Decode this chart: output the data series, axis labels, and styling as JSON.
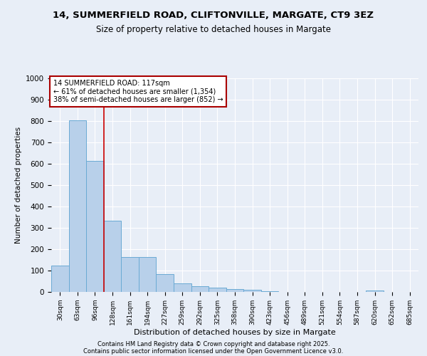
{
  "title1": "14, SUMMERFIELD ROAD, CLIFTONVILLE, MARGATE, CT9 3EZ",
  "title2": "Size of property relative to detached houses in Margate",
  "xlabel": "Distribution of detached houses by size in Margate",
  "ylabel": "Number of detached properties",
  "bins": [
    "30sqm",
    "63sqm",
    "96sqm",
    "128sqm",
    "161sqm",
    "194sqm",
    "227sqm",
    "259sqm",
    "292sqm",
    "325sqm",
    "358sqm",
    "390sqm",
    "423sqm",
    "456sqm",
    "489sqm",
    "521sqm",
    "554sqm",
    "587sqm",
    "620sqm",
    "652sqm",
    "685sqm"
  ],
  "values": [
    122,
    803,
    615,
    335,
    163,
    163,
    82,
    40,
    28,
    20,
    13,
    10,
    5,
    0,
    0,
    0,
    0,
    0,
    8,
    0,
    0
  ],
  "bar_color": "#b8d0ea",
  "bar_edge_color": "#6aaad4",
  "background_color": "#e8eef7",
  "grid_color": "#d0d8e8",
  "annotation_text": "14 SUMMERFIELD ROAD: 117sqm\n← 61% of detached houses are smaller (1,354)\n38% of semi-detached houses are larger (852) →",
  "annotation_box_color": "#ffffff",
  "annotation_box_edge": "#aa0000",
  "footnote1": "Contains HM Land Registry data © Crown copyright and database right 2025.",
  "footnote2": "Contains public sector information licensed under the Open Government Licence v3.0.",
  "ylim": [
    0,
    1000
  ],
  "yticks": [
    0,
    100,
    200,
    300,
    400,
    500,
    600,
    700,
    800,
    900,
    1000
  ]
}
